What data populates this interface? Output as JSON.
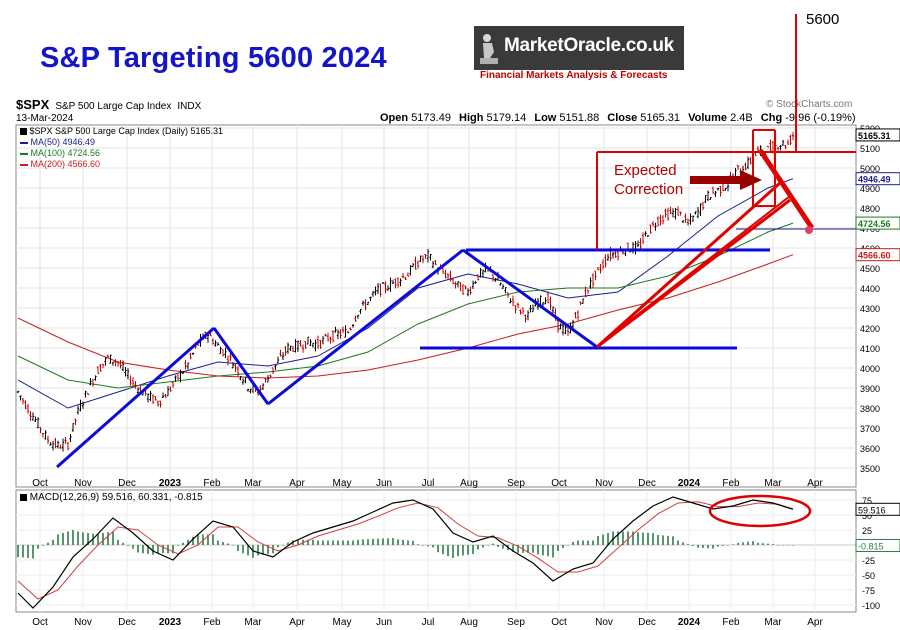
{
  "title": "S&P Targeting 5600 2024",
  "logo": {
    "name": "MarketOracle.co.uk",
    "tagline": "Financial Markets Analysis & Forecasts"
  },
  "header": {
    "symbol": "$SPX",
    "description": "S&P 500 Large Cap Index",
    "exchange": "INDX",
    "date": "13-Mar-2024",
    "open_label": "Open",
    "open": "5173.49",
    "high_label": "High",
    "high": "5179.14",
    "low_label": "Low",
    "low": "5151.88",
    "close_label": "Close",
    "close": "5165.31",
    "volume_label": "Volume",
    "volume": "2.4B",
    "chg_label": "Chg",
    "chg": "-9.96 (-0.19%)",
    "watermark": "© StockCharts.com"
  },
  "legend": {
    "price": "$SPX S&P 500 Large Cap Index (Daily) 5165.31",
    "ma50": "MA(50) 4946.49",
    "ma100": "MA(100) 4724.56",
    "ma200": "MA(200) 4566.60"
  },
  "annotations": {
    "target": "5600",
    "correction_1": "Expected",
    "correction_2": "Correction"
  },
  "macd_label": "MACD(12,26,9) 59.516, 60.331, -0.815",
  "colors": {
    "title": "#1414c8",
    "blue_lines": "#0a0adc",
    "red_annot": "#e00000",
    "ma50": "#1e1e8c",
    "ma100": "#1e7a1e",
    "ma200": "#c81e1e",
    "bar_up": "#000000",
    "bar_down": "#c80000"
  },
  "chart_data": [
    {
      "type": "ohlc",
      "title": "$SPX S&P 500 Large Cap Index (Daily) 5165.31",
      "x_ticks": [
        "Oct",
        "Nov",
        "Dec",
        "2023",
        "Feb",
        "Mar",
        "Apr",
        "May",
        "Jun",
        "Jul",
        "Aug",
        "Sep",
        "Oct",
        "Nov",
        "Dec",
        "2024",
        "Feb",
        "Mar",
        "Apr"
      ],
      "y_ticks": [
        3500,
        3600,
        3700,
        3800,
        3900,
        4000,
        4100,
        4200,
        4300,
        4400,
        4500,
        4600,
        4700,
        4800,
        4900,
        5000,
        5100,
        5200
      ],
      "ylim": [
        3450,
        5260
      ],
      "price_path": [
        [
          0,
          3880
        ],
        [
          4,
          3800
        ],
        [
          8,
          3720
        ],
        [
          12,
          3640
        ],
        [
          16,
          3610
        ],
        [
          20,
          3620
        ],
        [
          24,
          3780
        ],
        [
          28,
          3890
        ],
        [
          32,
          3990
        ],
        [
          36,
          4050
        ],
        [
          40,
          4030
        ],
        [
          44,
          3960
        ],
        [
          48,
          3900
        ],
        [
          52,
          3860
        ],
        [
          56,
          3830
        ],
        [
          60,
          3880
        ],
        [
          64,
          3950
        ],
        [
          68,
          4020
        ],
        [
          72,
          4120
        ],
        [
          76,
          4170
        ],
        [
          80,
          4110
        ],
        [
          84,
          4060
        ],
        [
          88,
          3990
        ],
        [
          92,
          3910
        ],
        [
          96,
          3880
        ],
        [
          100,
          3950
        ],
        [
          104,
          4030
        ],
        [
          108,
          4100
        ],
        [
          112,
          4110
        ],
        [
          116,
          4130
        ],
        [
          120,
          4120
        ],
        [
          124,
          4150
        ],
        [
          128,
          4170
        ],
        [
          132,
          4180
        ],
        [
          136,
          4280
        ],
        [
          140,
          4330
        ],
        [
          144,
          4390
        ],
        [
          148,
          4410
        ],
        [
          152,
          4440
        ],
        [
          156,
          4470
        ],
        [
          160,
          4530
        ],
        [
          164,
          4560
        ],
        [
          168,
          4500
        ],
        [
          172,
          4460
        ],
        [
          176,
          4410
        ],
        [
          180,
          4380
        ],
        [
          184,
          4460
        ],
        [
          188,
          4490
        ],
        [
          192,
          4440
        ],
        [
          196,
          4360
        ],
        [
          200,
          4300
        ],
        [
          204,
          4260
        ],
        [
          208,
          4330
        ],
        [
          212,
          4350
        ],
        [
          216,
          4220
        ],
        [
          220,
          4170
        ],
        [
          224,
          4280
        ],
        [
          228,
          4400
        ],
        [
          232,
          4480
        ],
        [
          236,
          4560
        ],
        [
          240,
          4580
        ],
        [
          244,
          4600
        ],
        [
          248,
          4600
        ],
        [
          252,
          4680
        ],
        [
          256,
          4740
        ],
        [
          260,
          4770
        ],
        [
          264,
          4780
        ],
        [
          268,
          4720
        ],
        [
          272,
          4780
        ],
        [
          276,
          4860
        ],
        [
          280,
          4890
        ],
        [
          284,
          4920
        ],
        [
          288,
          4990
        ],
        [
          292,
          5020
        ],
        [
          296,
          5080
        ],
        [
          300,
          5090
        ],
        [
          304,
          5120
        ],
        [
          308,
          5120
        ],
        [
          310,
          5165.31
        ]
      ],
      "series": [
        {
          "name": "MA(50)",
          "value": 4946.49,
          "points": [
            [
              0,
              3940
            ],
            [
              20,
              3800
            ],
            [
              40,
              3880
            ],
            [
              60,
              3960
            ],
            [
              80,
              4030
            ],
            [
              100,
              4010
            ],
            [
              120,
              4060
            ],
            [
              140,
              4200
            ],
            [
              160,
              4400
            ],
            [
              180,
              4470
            ],
            [
              200,
              4420
            ],
            [
              220,
              4350
            ],
            [
              240,
              4380
            ],
            [
              260,
              4560
            ],
            [
              280,
              4760
            ],
            [
              300,
              4900
            ],
            [
              310,
              4946.49
            ]
          ]
        },
        {
          "name": "MA(100)",
          "value": 4724.56,
          "points": [
            [
              0,
              4060
            ],
            [
              20,
              3940
            ],
            [
              40,
              3900
            ],
            [
              60,
              3930
            ],
            [
              80,
              3960
            ],
            [
              100,
              3980
            ],
            [
              120,
              4010
            ],
            [
              140,
              4080
            ],
            [
              160,
              4220
            ],
            [
              180,
              4320
            ],
            [
              200,
              4380
            ],
            [
              220,
              4400
            ],
            [
              240,
              4400
            ],
            [
              260,
              4460
            ],
            [
              280,
              4560
            ],
            [
              300,
              4680
            ],
            [
              310,
              4724.56
            ]
          ]
        },
        {
          "name": "MA(200)",
          "value": 4566.6,
          "points": [
            [
              0,
              4250
            ],
            [
              20,
              4130
            ],
            [
              40,
              4030
            ],
            [
              60,
              3990
            ],
            [
              80,
              3960
            ],
            [
              100,
              3950
            ],
            [
              120,
              3960
            ],
            [
              140,
              3990
            ],
            [
              160,
              4040
            ],
            [
              180,
              4100
            ],
            [
              200,
              4170
            ],
            [
              220,
              4220
            ],
            [
              240,
              4290
            ],
            [
              260,
              4350
            ],
            [
              280,
              4430
            ],
            [
              300,
              4520
            ],
            [
              310,
              4566.6
            ]
          ]
        }
      ]
    },
    {
      "type": "line",
      "title": "MACD(12,26,9) 59.516, 60.331, -0.815",
      "y_ticks": [
        75,
        50,
        25,
        -25,
        -50,
        -75,
        -100
      ],
      "ylim": [
        -115,
        90
      ],
      "series": [
        {
          "name": "MACD",
          "value": 59.516,
          "points": [
            [
              0,
              -80
            ],
            [
              6,
              -105
            ],
            [
              14,
              -70
            ],
            [
              22,
              -20
            ],
            [
              30,
              10
            ],
            [
              38,
              45
            ],
            [
              46,
              20
            ],
            [
              54,
              -10
            ],
            [
              62,
              -25
            ],
            [
              70,
              10
            ],
            [
              78,
              40
            ],
            [
              86,
              30
            ],
            [
              94,
              -10
            ],
            [
              102,
              -20
            ],
            [
              110,
              5
            ],
            [
              118,
              20
            ],
            [
              126,
              30
            ],
            [
              134,
              40
            ],
            [
              142,
              55
            ],
            [
              150,
              70
            ],
            [
              158,
              75
            ],
            [
              166,
              60
            ],
            [
              174,
              20
            ],
            [
              182,
              5
            ],
            [
              190,
              15
            ],
            [
              198,
              -10
            ],
            [
              206,
              -30
            ],
            [
              214,
              -60
            ],
            [
              222,
              -40
            ],
            [
              230,
              -30
            ],
            [
              238,
              10
            ],
            [
              246,
              40
            ],
            [
              254,
              65
            ],
            [
              262,
              80
            ],
            [
              270,
              70
            ],
            [
              278,
              60
            ],
            [
              286,
              65
            ],
            [
              294,
              75
            ],
            [
              302,
              70
            ],
            [
              310,
              59.516
            ]
          ]
        },
        {
          "name": "Signal",
          "value": 60.331,
          "points": [
            [
              0,
              -60
            ],
            [
              8,
              -90
            ],
            [
              16,
              -75
            ],
            [
              24,
              -35
            ],
            [
              32,
              0
            ],
            [
              40,
              30
            ],
            [
              48,
              25
            ],
            [
              56,
              0
            ],
            [
              64,
              -15
            ],
            [
              72,
              0
            ],
            [
              80,
              30
            ],
            [
              88,
              30
            ],
            [
              96,
              5
            ],
            [
              104,
              -10
            ],
            [
              112,
              0
            ],
            [
              120,
              15
            ],
            [
              128,
              25
            ],
            [
              136,
              35
            ],
            [
              144,
              48
            ],
            [
              152,
              62
            ],
            [
              160,
              70
            ],
            [
              168,
              62
            ],
            [
              176,
              35
            ],
            [
              184,
              15
            ],
            [
              192,
              12
            ],
            [
              200,
              -2
            ],
            [
              208,
              -22
            ],
            [
              216,
              -45
            ],
            [
              224,
              -45
            ],
            [
              232,
              -35
            ],
            [
              240,
              -5
            ],
            [
              248,
              25
            ],
            [
              256,
              52
            ],
            [
              264,
              70
            ],
            [
              272,
              72
            ],
            [
              280,
              64
            ],
            [
              288,
              64
            ],
            [
              296,
              70
            ],
            [
              304,
              68
            ],
            [
              310,
              60.331
            ]
          ]
        }
      ]
    }
  ]
}
